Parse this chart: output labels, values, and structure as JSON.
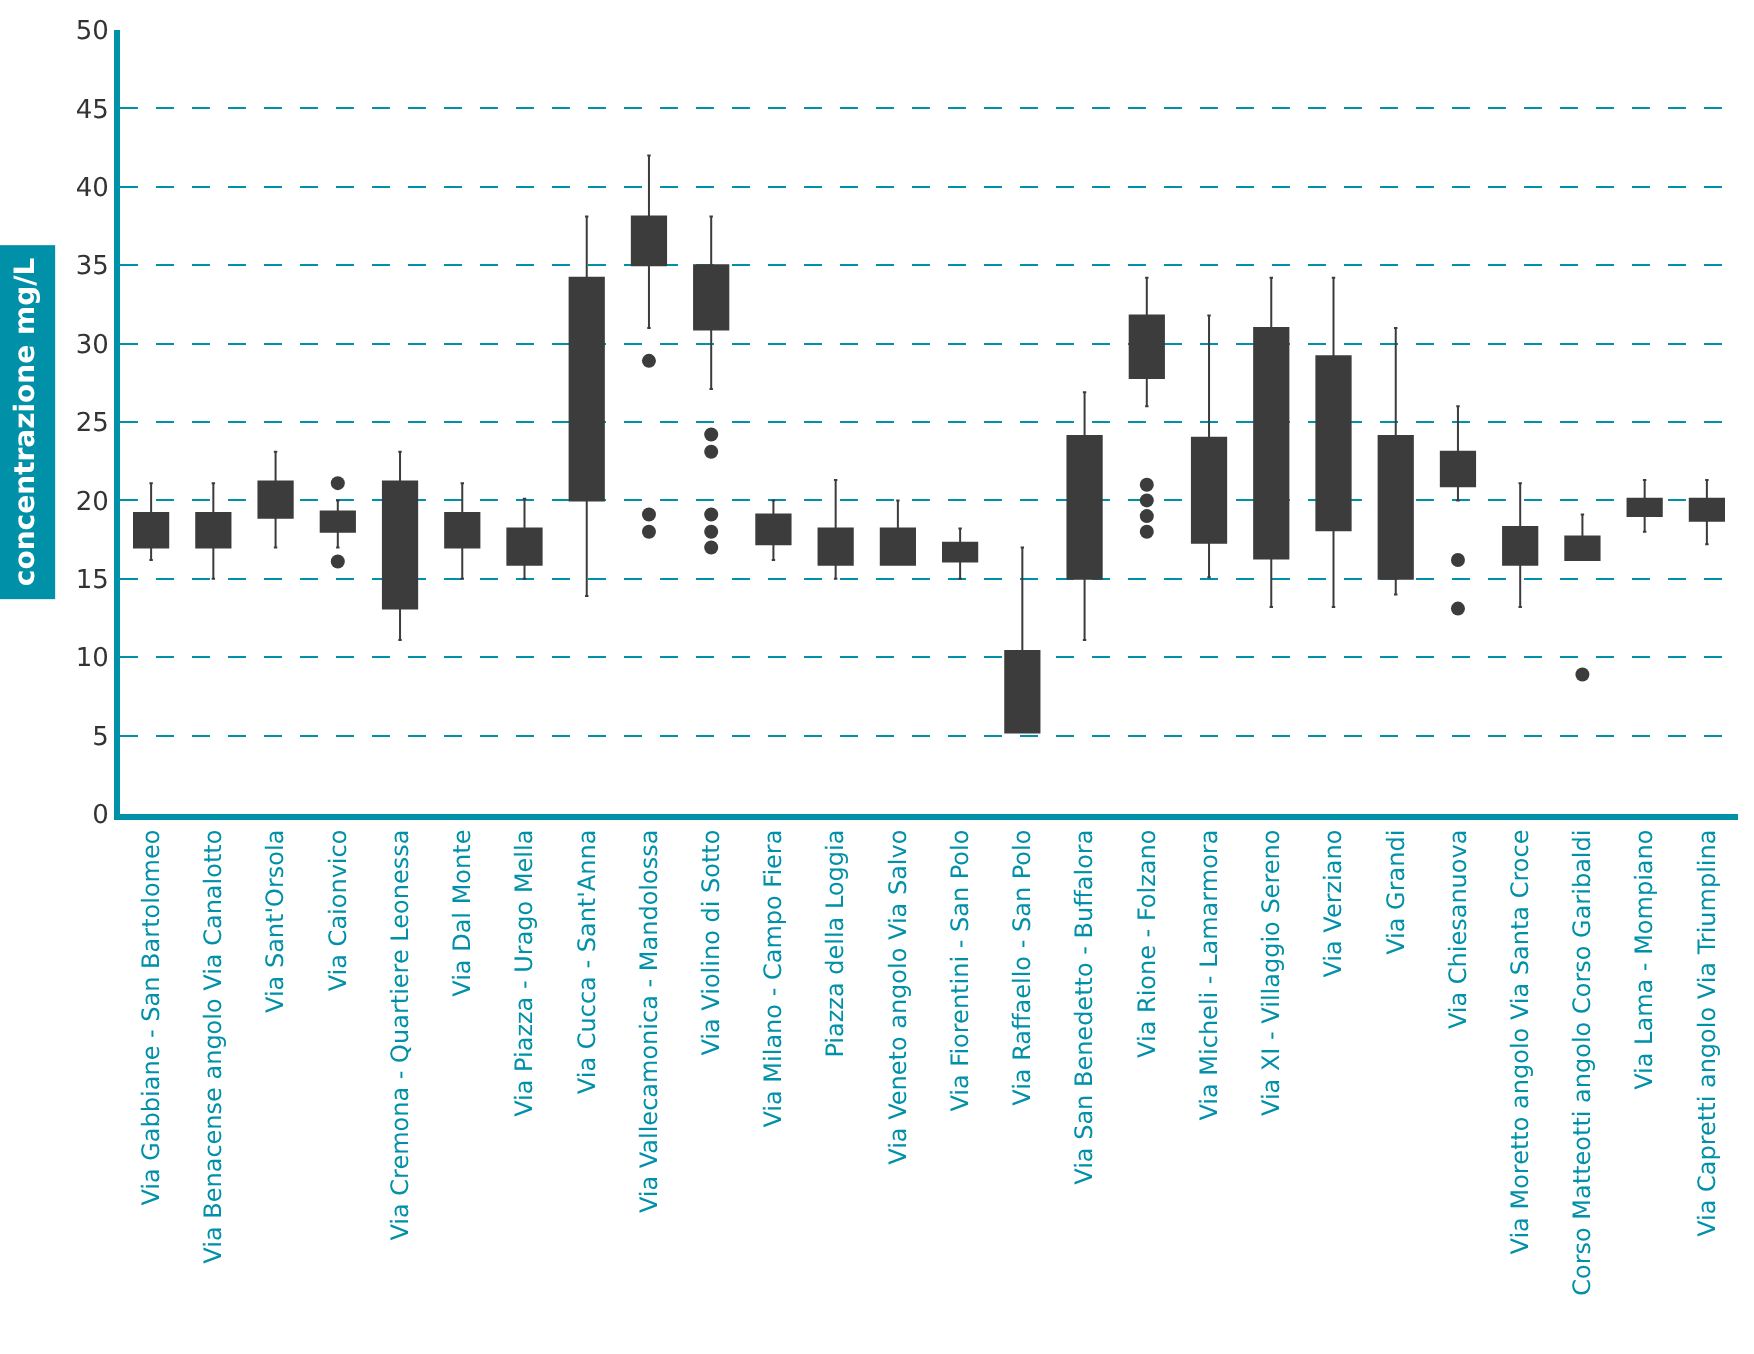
{
  "chart_data": {
    "type": "box",
    "ylabel": "concentrazione mg/L",
    "categories": [
      "Via Gabbiane - San Bartolomeo",
      "Via Benacense angolo Via Canalotto",
      "Via Sant'Orsola",
      "Via Caionvico",
      "Via Cremona - Quartiere Leonessa",
      "Via Dal Monte",
      "Via Piazza - Urago Mella",
      "Via Cucca - Sant'Anna",
      "Via Vallecamonica - Mandolossa",
      "Via Violino di Sotto",
      "Via Milano - Campo Fiera",
      "Piazza della Loggia",
      "Via Veneto angolo Via Salvo",
      "Via Fiorentini - San Polo",
      "Via Raffaello - San Polo",
      "Via San Benedetto - Buffalora",
      "Via Rione - Folzano",
      "Via Micheli - Lamarmora",
      "Via XI - Villaggio Sereno",
      "Via Verziano",
      "Via Grandi",
      "Via Chiesanuova",
      "Via Moretto angolo Via Santa Croce",
      "Corso Matteotti angolo Corso Garibaldi",
      "Via Lama - Mompiano",
      "Via Capretti angolo Via Triumplina"
    ],
    "series": [
      {
        "color": "#3c3c3c",
        "boxes": [
          {
            "low": 16.2,
            "q1": 17,
            "q3": 19.2,
            "high": 21.1
          },
          {
            "low": 15,
            "q1": 17,
            "q3": 19.2,
            "high": 21.1
          },
          {
            "low": 17,
            "q1": 18.9,
            "q3": 21.2,
            "high": 23.1
          },
          {
            "low": 17,
            "q1": 18,
            "q3": 19.3,
            "high": 20,
            "outliers": [
              21.1,
              16.1
            ]
          },
          {
            "low": 11.1,
            "q1": 13.1,
            "q3": 21.2,
            "high": 23.1
          },
          {
            "low": 15,
            "q1": 17,
            "q3": 19.2,
            "high": 21.1
          },
          {
            "low": 15,
            "q1": 15.9,
            "q3": 18.2,
            "high": 20.1
          },
          {
            "low": 13.9,
            "q1": 20,
            "q3": 34.2,
            "high": 38.1
          },
          {
            "low": 31,
            "q1": 35,
            "q3": 38.1,
            "high": 42,
            "outliers": [
              28.9,
              19.1,
              18
            ]
          },
          {
            "low": 27.1,
            "q1": 30.9,
            "q3": 35,
            "high": 38.1,
            "outliers": [
              24.2,
              23.1,
              19.1,
              18,
              17
            ]
          },
          {
            "low": 16.2,
            "q1": 17.2,
            "q3": 19.1,
            "high": 20
          },
          {
            "low": 15,
            "q1": 15.9,
            "q3": 18.2,
            "high": 21.3
          },
          {
            "low": 15.9,
            "q1": 15.9,
            "q3": 18.2,
            "high": 20
          },
          {
            "low": 15,
            "q1": 16.1,
            "q3": 17.3,
            "high": 18.2
          },
          {
            "low": 5.2,
            "q1": 5.2,
            "q3": 10.4,
            "high": 17
          },
          {
            "low": 11.1,
            "q1": 15,
            "q3": 24.1,
            "high": 26.9
          },
          {
            "low": 26,
            "q1": 27.8,
            "q3": 31.8,
            "high": 34.2,
            "outliers": [
              21,
              20,
              19,
              18
            ]
          },
          {
            "low": 15.1,
            "q1": 17.3,
            "q3": 24,
            "high": 31.8
          },
          {
            "low": 13.2,
            "q1": 16.3,
            "q3": 31,
            "high": 34.2
          },
          {
            "low": 13.2,
            "q1": 18.1,
            "q3": 29.2,
            "high": 34.2
          },
          {
            "low": 14,
            "q1": 15,
            "q3": 24.1,
            "high": 31
          },
          {
            "low": 20,
            "q1": 20.9,
            "q3": 23.1,
            "high": 26,
            "outliers": [
              16.2,
              13.1
            ]
          },
          {
            "low": 13.2,
            "q1": 15.9,
            "q3": 18.3,
            "high": 21.1
          },
          {
            "low": 16.2,
            "q1": 16.2,
            "q3": 17.7,
            "high": 19.1,
            "outliers": [
              8.9
            ]
          },
          {
            "low": 18,
            "q1": 19,
            "q3": 20.1,
            "high": 21.3
          },
          {
            "low": 17.2,
            "q1": 18.7,
            "q3": 20.1,
            "high": 21.3
          }
        ]
      }
    ],
    "ylim": [
      0,
      50
    ],
    "yticks": [
      0,
      5,
      10,
      15,
      20,
      25,
      30,
      35,
      40,
      45,
      50
    ],
    "grid": "y"
  }
}
